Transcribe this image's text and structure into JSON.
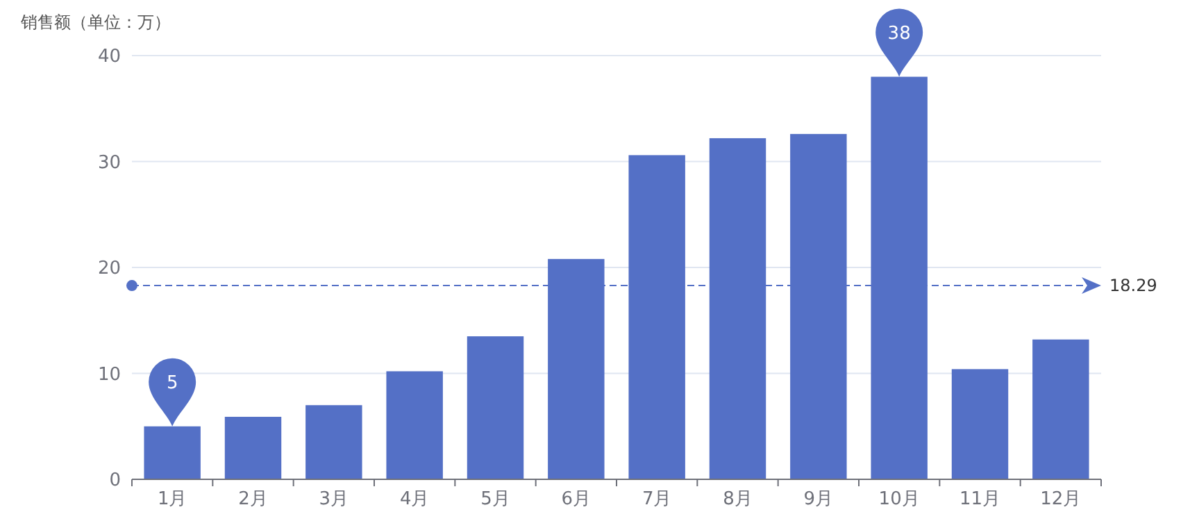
{
  "chart_data": {
    "type": "bar",
    "ylabel": "销售额（单位：万）",
    "categories": [
      "1月",
      "2月",
      "3月",
      "4月",
      "5月",
      "6月",
      "7月",
      "8月",
      "9月",
      "10月",
      "11月",
      "12月"
    ],
    "values": [
      5,
      5.9,
      7,
      10.2,
      13.5,
      20.8,
      30.6,
      32.2,
      32.6,
      38,
      10.4,
      13.2
    ],
    "color": "#5470c6",
    "ylim": [
      0,
      40
    ],
    "yticks": [
      0,
      10,
      20,
      30,
      40
    ],
    "grid": "y",
    "ref_lines": [
      {
        "axis": "y",
        "value": 18.29,
        "label": "18.29",
        "color": "#5470c6",
        "line_style": "dashed"
      }
    ],
    "annotations": [
      {
        "text": "5",
        "x": "1月",
        "y": 5
      },
      {
        "text": "38",
        "x": "10月",
        "y": 38
      }
    ]
  }
}
